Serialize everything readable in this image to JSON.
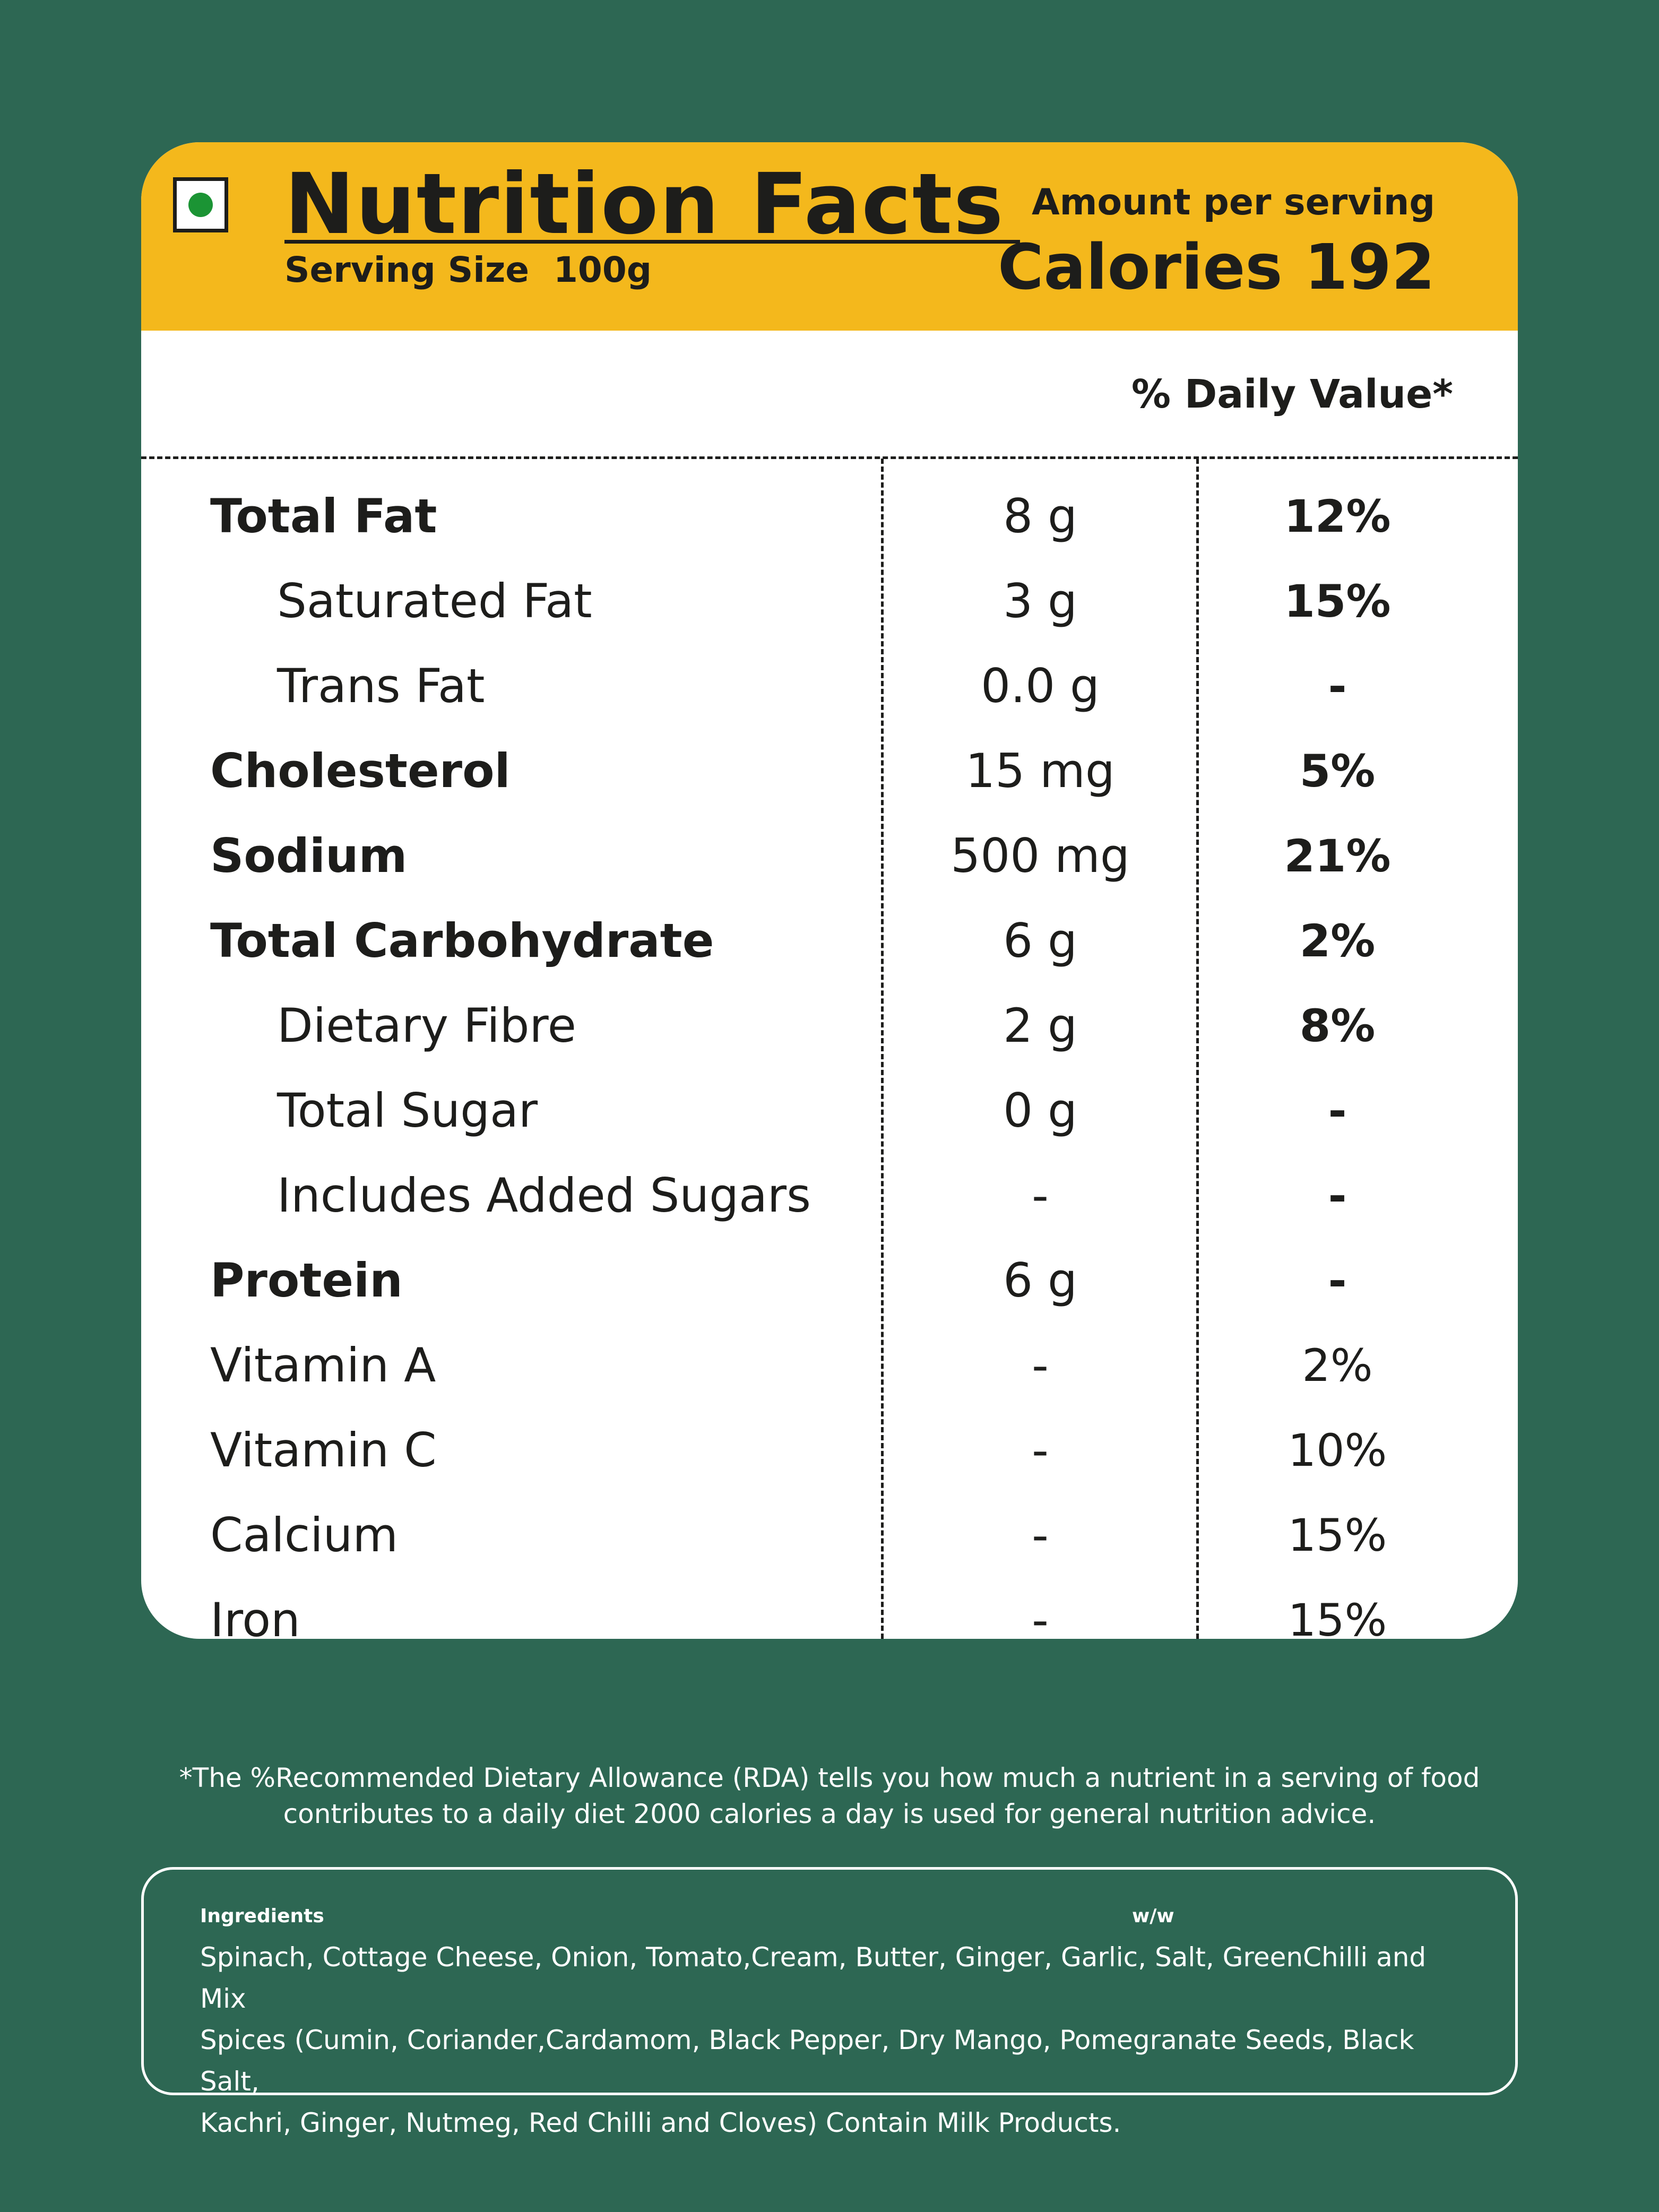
{
  "header": {
    "title": "Nutrition Facts",
    "serving_size": "Serving Size  100g",
    "amount_per_serving": "Amount per serving",
    "calories": "Calories 192",
    "veg_mark_icon": "veg-symbol-icon",
    "colors": {
      "band": "#f4b81c",
      "background": "#2d6753",
      "veg_dot": "#1b9434"
    }
  },
  "table": {
    "daily_value_header": "% Daily Value*",
    "rows": [
      {
        "name": "Total Fat",
        "amount": "8 g",
        "dv": "12%"
      },
      {
        "name": "Saturated Fat",
        "amount": "3 g",
        "dv": "15%"
      },
      {
        "name": "Trans Fat",
        "amount": "0.0 g",
        "dv": "-"
      },
      {
        "name": "Cholesterol",
        "amount": "15 mg",
        "dv": "5%"
      },
      {
        "name": "Sodium",
        "amount": "500 mg",
        "dv": "21%"
      },
      {
        "name": "Total Carbohydrate",
        "amount": "6 g",
        "dv": "2%"
      },
      {
        "name": "Dietary Fibre",
        "amount": "2 g",
        "dv": "8%"
      },
      {
        "name": "Total Sugar",
        "amount": "0 g",
        "dv": "-"
      },
      {
        "name": "Includes Added Sugars",
        "amount": "-",
        "dv": "-"
      },
      {
        "name": "Protein",
        "amount": "6 g",
        "dv": "-"
      },
      {
        "name": "Vitamin A",
        "amount": "-",
        "dv": "2%"
      },
      {
        "name": "Vitamin C",
        "amount": "-",
        "dv": "10%"
      },
      {
        "name": "Calcium",
        "amount": "-",
        "dv": "15%"
      },
      {
        "name": "Iron",
        "amount": "-",
        "dv": "15%"
      }
    ]
  },
  "footnote": {
    "line1": "*The %Recommended Dietary Allowance (RDA) tells you how much a nutrient in a serving of food",
    "line2": "contributes to a daily diet 2000 calories a day is used for general nutrition advice."
  },
  "ingredients": {
    "label": "Ingredients",
    "unit": "w/w",
    "line1": "Spinach, Cottage Cheese, Onion, Tomato,Cream, Butter, Ginger, Garlic, Salt, GreenChilli and Mix",
    "line2": "Spices (Cumin, Coriander,Cardamom, Black Pepper, Dry Mango, Pomegranate Seeds, Black Salt,",
    "line3": "Kachri, Ginger, Nutmeg, Red Chilli and Cloves) Contain Milk Products."
  }
}
